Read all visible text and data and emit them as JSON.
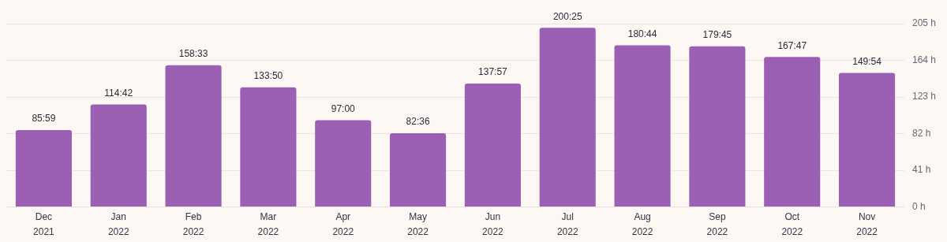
{
  "chart_data": {
    "type": "bar",
    "categories": [
      "Dec 2021",
      "Jan 2022",
      "Feb 2022",
      "Mar 2022",
      "Apr 2022",
      "May 2022",
      "Jun 2022",
      "Jul 2022",
      "Aug 2022",
      "Sep 2022",
      "Oct 2022",
      "Nov 2022"
    ],
    "values": [
      85.983,
      114.7,
      158.55,
      133.833,
      97,
      82.6,
      137.95,
      200.417,
      180.733,
      179.75,
      167.783,
      149.9
    ],
    "value_labels": [
      "85:59",
      "114:42",
      "158:33",
      "133:50",
      "97:00",
      "82:36",
      "137:57",
      "200:25",
      "180:44",
      "179:45",
      "167:47",
      "149:54"
    ],
    "color": "#9b5fb4",
    "ylim": [
      0,
      205
    ],
    "yticks": [
      {
        "value": 0,
        "label": "0 h"
      },
      {
        "value": 41,
        "label": "41 h"
      },
      {
        "value": 82,
        "label": "82 h"
      },
      {
        "value": 123,
        "label": "123 h"
      },
      {
        "value": 164,
        "label": "164 h"
      },
      {
        "value": 205,
        "label": "205 h"
      }
    ],
    "grid": "y"
  }
}
